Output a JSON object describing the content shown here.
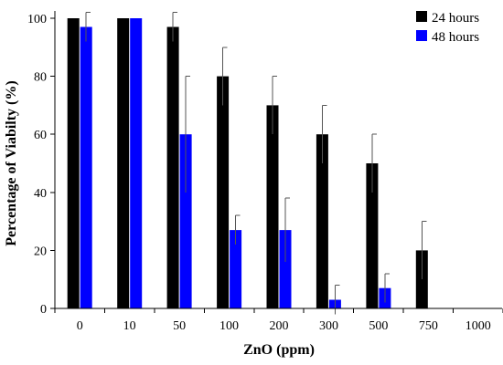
{
  "chart_data": {
    "type": "bar",
    "title": "",
    "xlabel": "ZnO (ppm)",
    "ylabel": "Percentage of Viabilty (%)",
    "categories": [
      "0",
      "10",
      "50",
      "100",
      "200",
      "300",
      "500",
      "750",
      "1000"
    ],
    "ylim": [
      0,
      100
    ],
    "yticks": [
      0,
      20,
      40,
      60,
      80,
      100
    ],
    "grid": false,
    "legend_position": "top-right",
    "series": [
      {
        "name": "24 hours",
        "color": "#000000",
        "values": [
          100,
          100,
          97,
          80,
          70,
          60,
          50,
          20,
          0
        ],
        "errors": [
          0,
          0,
          5,
          10,
          10,
          10,
          10,
          10,
          0
        ]
      },
      {
        "name": "48 hours",
        "color": "#0000ff",
        "values": [
          97,
          100,
          60,
          27,
          27,
          3,
          7,
          0,
          0
        ],
        "errors": [
          5,
          0,
          20,
          5,
          11,
          5,
          5,
          0,
          0
        ]
      }
    ]
  }
}
